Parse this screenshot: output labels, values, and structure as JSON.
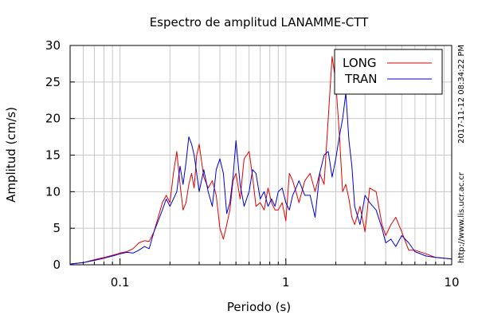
{
  "chart_data": {
    "type": "line",
    "title": "Espectro de amplitud LANAMME-CTT",
    "xlabel": "Periodo (s)",
    "ylabel": "Amplitud (cm/s)",
    "xscale": "log",
    "xlim": [
      0.05,
      10
    ],
    "ylim": [
      0,
      30
    ],
    "xticks": [
      {
        "value": 0.1,
        "label": "0.1"
      },
      {
        "value": 1,
        "label": "1"
      },
      {
        "value": 10,
        "label": "10"
      }
    ],
    "yticks": [
      0,
      5,
      10,
      15,
      20,
      25,
      30
    ],
    "grid": true,
    "legend_position": "top-right",
    "side_texts": [
      "2017-11-12 08:34:22 PM",
      "http://www.lis.ucr.ac.cr"
    ],
    "series": [
      {
        "name": "LONG",
        "color": "#e00000",
        "x": [
          0.05,
          0.06,
          0.07,
          0.08,
          0.09,
          0.1,
          0.11,
          0.12,
          0.13,
          0.14,
          0.15,
          0.16,
          0.17,
          0.18,
          0.19,
          0.2,
          0.21,
          0.22,
          0.23,
          0.24,
          0.25,
          0.26,
          0.27,
          0.28,
          0.29,
          0.3,
          0.32,
          0.34,
          0.36,
          0.38,
          0.4,
          0.42,
          0.44,
          0.46,
          0.48,
          0.5,
          0.53,
          0.56,
          0.6,
          0.63,
          0.66,
          0.7,
          0.74,
          0.78,
          0.82,
          0.86,
          0.9,
          0.95,
          1.0,
          1.05,
          1.1,
          1.15,
          1.2,
          1.3,
          1.4,
          1.5,
          1.6,
          1.7,
          1.8,
          1.9,
          2.0,
          2.1,
          2.2,
          2.3,
          2.4,
          2.5,
          2.6,
          2.8,
          3.0,
          3.2,
          3.5,
          3.8,
          4.0,
          4.3,
          4.6,
          5.0,
          5.5,
          6.0,
          7.0,
          8.0,
          9.0,
          10.0
        ],
        "y": [
          0.1,
          0.3,
          0.7,
          1.0,
          1.3,
          1.6,
          1.8,
          2.2,
          3.0,
          3.3,
          3.2,
          4.5,
          6.5,
          8.5,
          9.5,
          8.5,
          12.5,
          15.5,
          11.0,
          7.5,
          8.5,
          11.0,
          12.5,
          10.5,
          15.0,
          16.5,
          12.0,
          10.5,
          11.5,
          9.5,
          5.0,
          3.5,
          5.5,
          7.5,
          11.5,
          12.5,
          9.0,
          14.5,
          15.5,
          12.0,
          8.0,
          8.5,
          7.5,
          10.5,
          8.5,
          7.5,
          7.5,
          8.5,
          6.0,
          12.5,
          11.5,
          10.0,
          8.5,
          11.5,
          12.5,
          10.0,
          12.5,
          11.0,
          20.0,
          28.5,
          25.0,
          18.0,
          10.0,
          11.0,
          9.0,
          6.5,
          5.5,
          8.0,
          4.5,
          10.5,
          10.0,
          5.5,
          4.0,
          5.5,
          6.5,
          4.5,
          2.0,
          2.0,
          1.5,
          1.0,
          0.9,
          0.8
        ]
      },
      {
        "name": "TRAN",
        "color": "#0000d0",
        "x": [
          0.05,
          0.06,
          0.07,
          0.08,
          0.09,
          0.1,
          0.11,
          0.12,
          0.13,
          0.14,
          0.15,
          0.16,
          0.17,
          0.18,
          0.19,
          0.2,
          0.21,
          0.22,
          0.23,
          0.24,
          0.25,
          0.26,
          0.27,
          0.28,
          0.29,
          0.3,
          0.32,
          0.34,
          0.36,
          0.38,
          0.4,
          0.42,
          0.44,
          0.46,
          0.48,
          0.5,
          0.53,
          0.56,
          0.6,
          0.63,
          0.66,
          0.7,
          0.74,
          0.78,
          0.82,
          0.86,
          0.9,
          0.95,
          1.0,
          1.05,
          1.1,
          1.15,
          1.2,
          1.3,
          1.4,
          1.5,
          1.6,
          1.7,
          1.8,
          1.9,
          2.0,
          2.1,
          2.2,
          2.3,
          2.4,
          2.5,
          2.6,
          2.8,
          3.0,
          3.2,
          3.5,
          3.8,
          4.0,
          4.3,
          4.6,
          5.0,
          5.5,
          6.0,
          7.0,
          8.0,
          9.0,
          10.0
        ],
        "y": [
          0.1,
          0.3,
          0.6,
          0.9,
          1.2,
          1.5,
          1.7,
          1.6,
          2.0,
          2.5,
          2.2,
          4.5,
          6.0,
          7.5,
          9.0,
          8.0,
          9.0,
          10.0,
          13.5,
          11.0,
          14.0,
          17.5,
          16.5,
          15.0,
          12.5,
          10.0,
          13.0,
          10.0,
          8.0,
          13.0,
          14.5,
          12.5,
          7.0,
          8.5,
          12.0,
          17.0,
          11.0,
          8.0,
          10.0,
          13.0,
          12.5,
          9.0,
          10.0,
          8.0,
          9.0,
          8.0,
          10.0,
          10.5,
          8.5,
          7.5,
          9.5,
          10.5,
          11.5,
          9.5,
          9.5,
          6.5,
          12.5,
          15.0,
          15.5,
          12.0,
          14.5,
          17.5,
          20.0,
          23.5,
          17.0,
          13.5,
          8.0,
          5.5,
          9.5,
          8.5,
          7.5,
          5.0,
          3.0,
          3.5,
          2.5,
          4.0,
          3.0,
          1.8,
          1.2,
          1.0,
          0.9,
          0.8
        ]
      }
    ]
  }
}
